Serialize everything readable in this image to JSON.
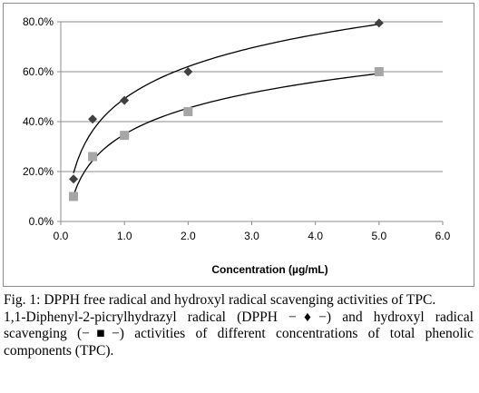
{
  "chart_data": {
    "type": "scatter",
    "title": "",
    "xlabel": "Concentration (µg/mL)",
    "ylabel": "",
    "xlim": [
      0,
      6
    ],
    "ylim": [
      0,
      80
    ],
    "x_ticks": [
      "0.0",
      "1.0",
      "2.0",
      "3.0",
      "4.0",
      "5.0",
      "6.0"
    ],
    "y_ticks": [
      "0.0%",
      "20.0%",
      "40.0%",
      "60.0%",
      "80.0%"
    ],
    "grid": {
      "horizontal": true,
      "vertical": false
    },
    "legend": "none",
    "series": [
      {
        "marker": "diamond",
        "color": "#404040",
        "x": [
          0.2,
          0.5,
          1.0,
          2.0,
          5.0
        ],
        "y": [
          17,
          41,
          48.5,
          60,
          79.5
        ],
        "trendline": "logarithmic"
      },
      {
        "marker": "square",
        "color": "#a6a6a6",
        "x": [
          0.2,
          0.5,
          1.0,
          2.0,
          5.0
        ],
        "y": [
          10,
          26,
          34.5,
          44,
          60
        ],
        "trendline": "logarithmic"
      }
    ]
  },
  "caption": {
    "title": "Fig. 1: DPPH free radical and hydroxyl radical scavenging activities of TPC.",
    "body_part1": "1,1-Diphenyl-2-picrylhydrazyl radical (DPPH ",
    "symbol1": "−♦−",
    "body_part2": ") and hydroxyl radical scavenging (",
    "symbol2": "−■−",
    "body_part3": ") activities of different concentrations of total phenolic components (TPC)."
  }
}
